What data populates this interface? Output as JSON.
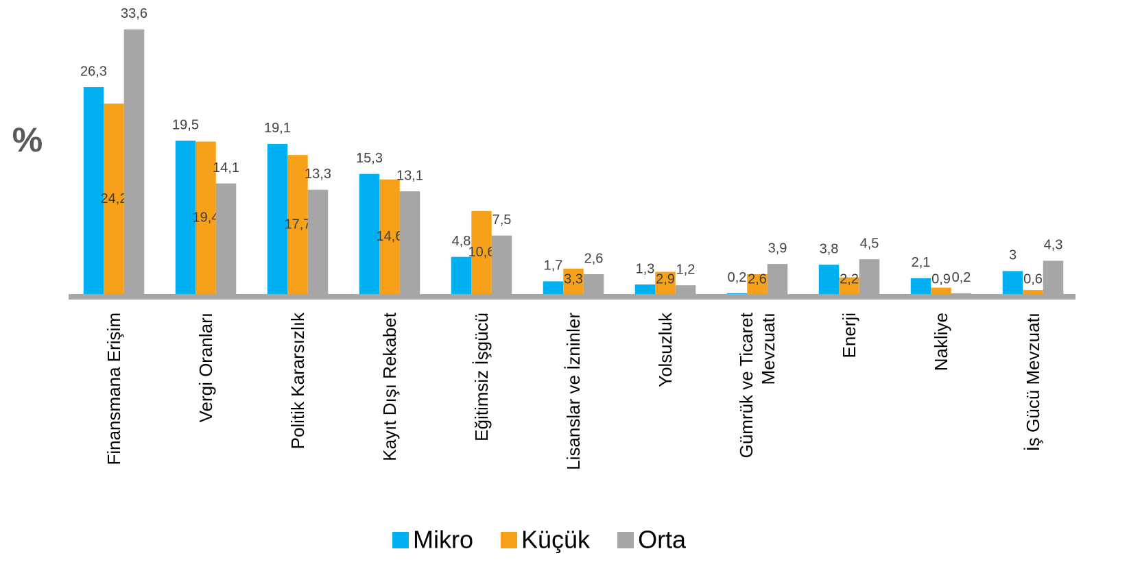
{
  "chart_data": {
    "type": "bar",
    "ylabel": "%",
    "categories": [
      "Finansmana Erişim",
      "Vergi Oranları",
      "Politik Kararsızlık",
      "Kayıt Dışı Rekabet",
      "Eğitimsiz İşgücü",
      "Lisanslar ve İzninler",
      "Yolsuzluk",
      "Gümrük ve Ticaret Mevzuatı",
      "Enerji",
      "Nakliye",
      "İş Gücü Mevzuatı"
    ],
    "series": [
      {
        "name": "Mikro",
        "color": "#00b0f0",
        "values": [
          26.3,
          19.5,
          19.1,
          15.3,
          4.8,
          1.7,
          1.3,
          0.2,
          3.8,
          2.1,
          3
        ],
        "value_labels": [
          "26,3",
          "19,5",
          "19,1",
          "15,3",
          "4,8",
          "1,7",
          "1,3",
          "0,2",
          "3,8",
          "2,1",
          "3"
        ]
      },
      {
        "name": "Küçük",
        "color": "#f7a01a",
        "values": [
          24.2,
          19.4,
          17.7,
          14.6,
          10.6,
          3.3,
          2.9,
          2.6,
          2.2,
          0.9,
          0.6
        ],
        "value_labels": [
          "24,2",
          "19,4",
          "17,7",
          "14,6",
          "10,6",
          "3,3",
          "2,9",
          "2,6",
          "2,2",
          "0,9",
          "0,6"
        ]
      },
      {
        "name": "Orta",
        "color": "#a6a6a6",
        "values": [
          33.6,
          14.1,
          13.3,
          13.1,
          7.5,
          2.6,
          1.2,
          3.9,
          4.5,
          0.2,
          4.3
        ],
        "value_labels": [
          "33,6",
          "14,1",
          "13,3",
          "13,1",
          "7,5",
          "2,6",
          "1,2",
          "3,9",
          "4,5",
          "0,2",
          "4,3"
        ]
      }
    ],
    "ylim": [
      0,
      35
    ],
    "legend": "bottom"
  }
}
